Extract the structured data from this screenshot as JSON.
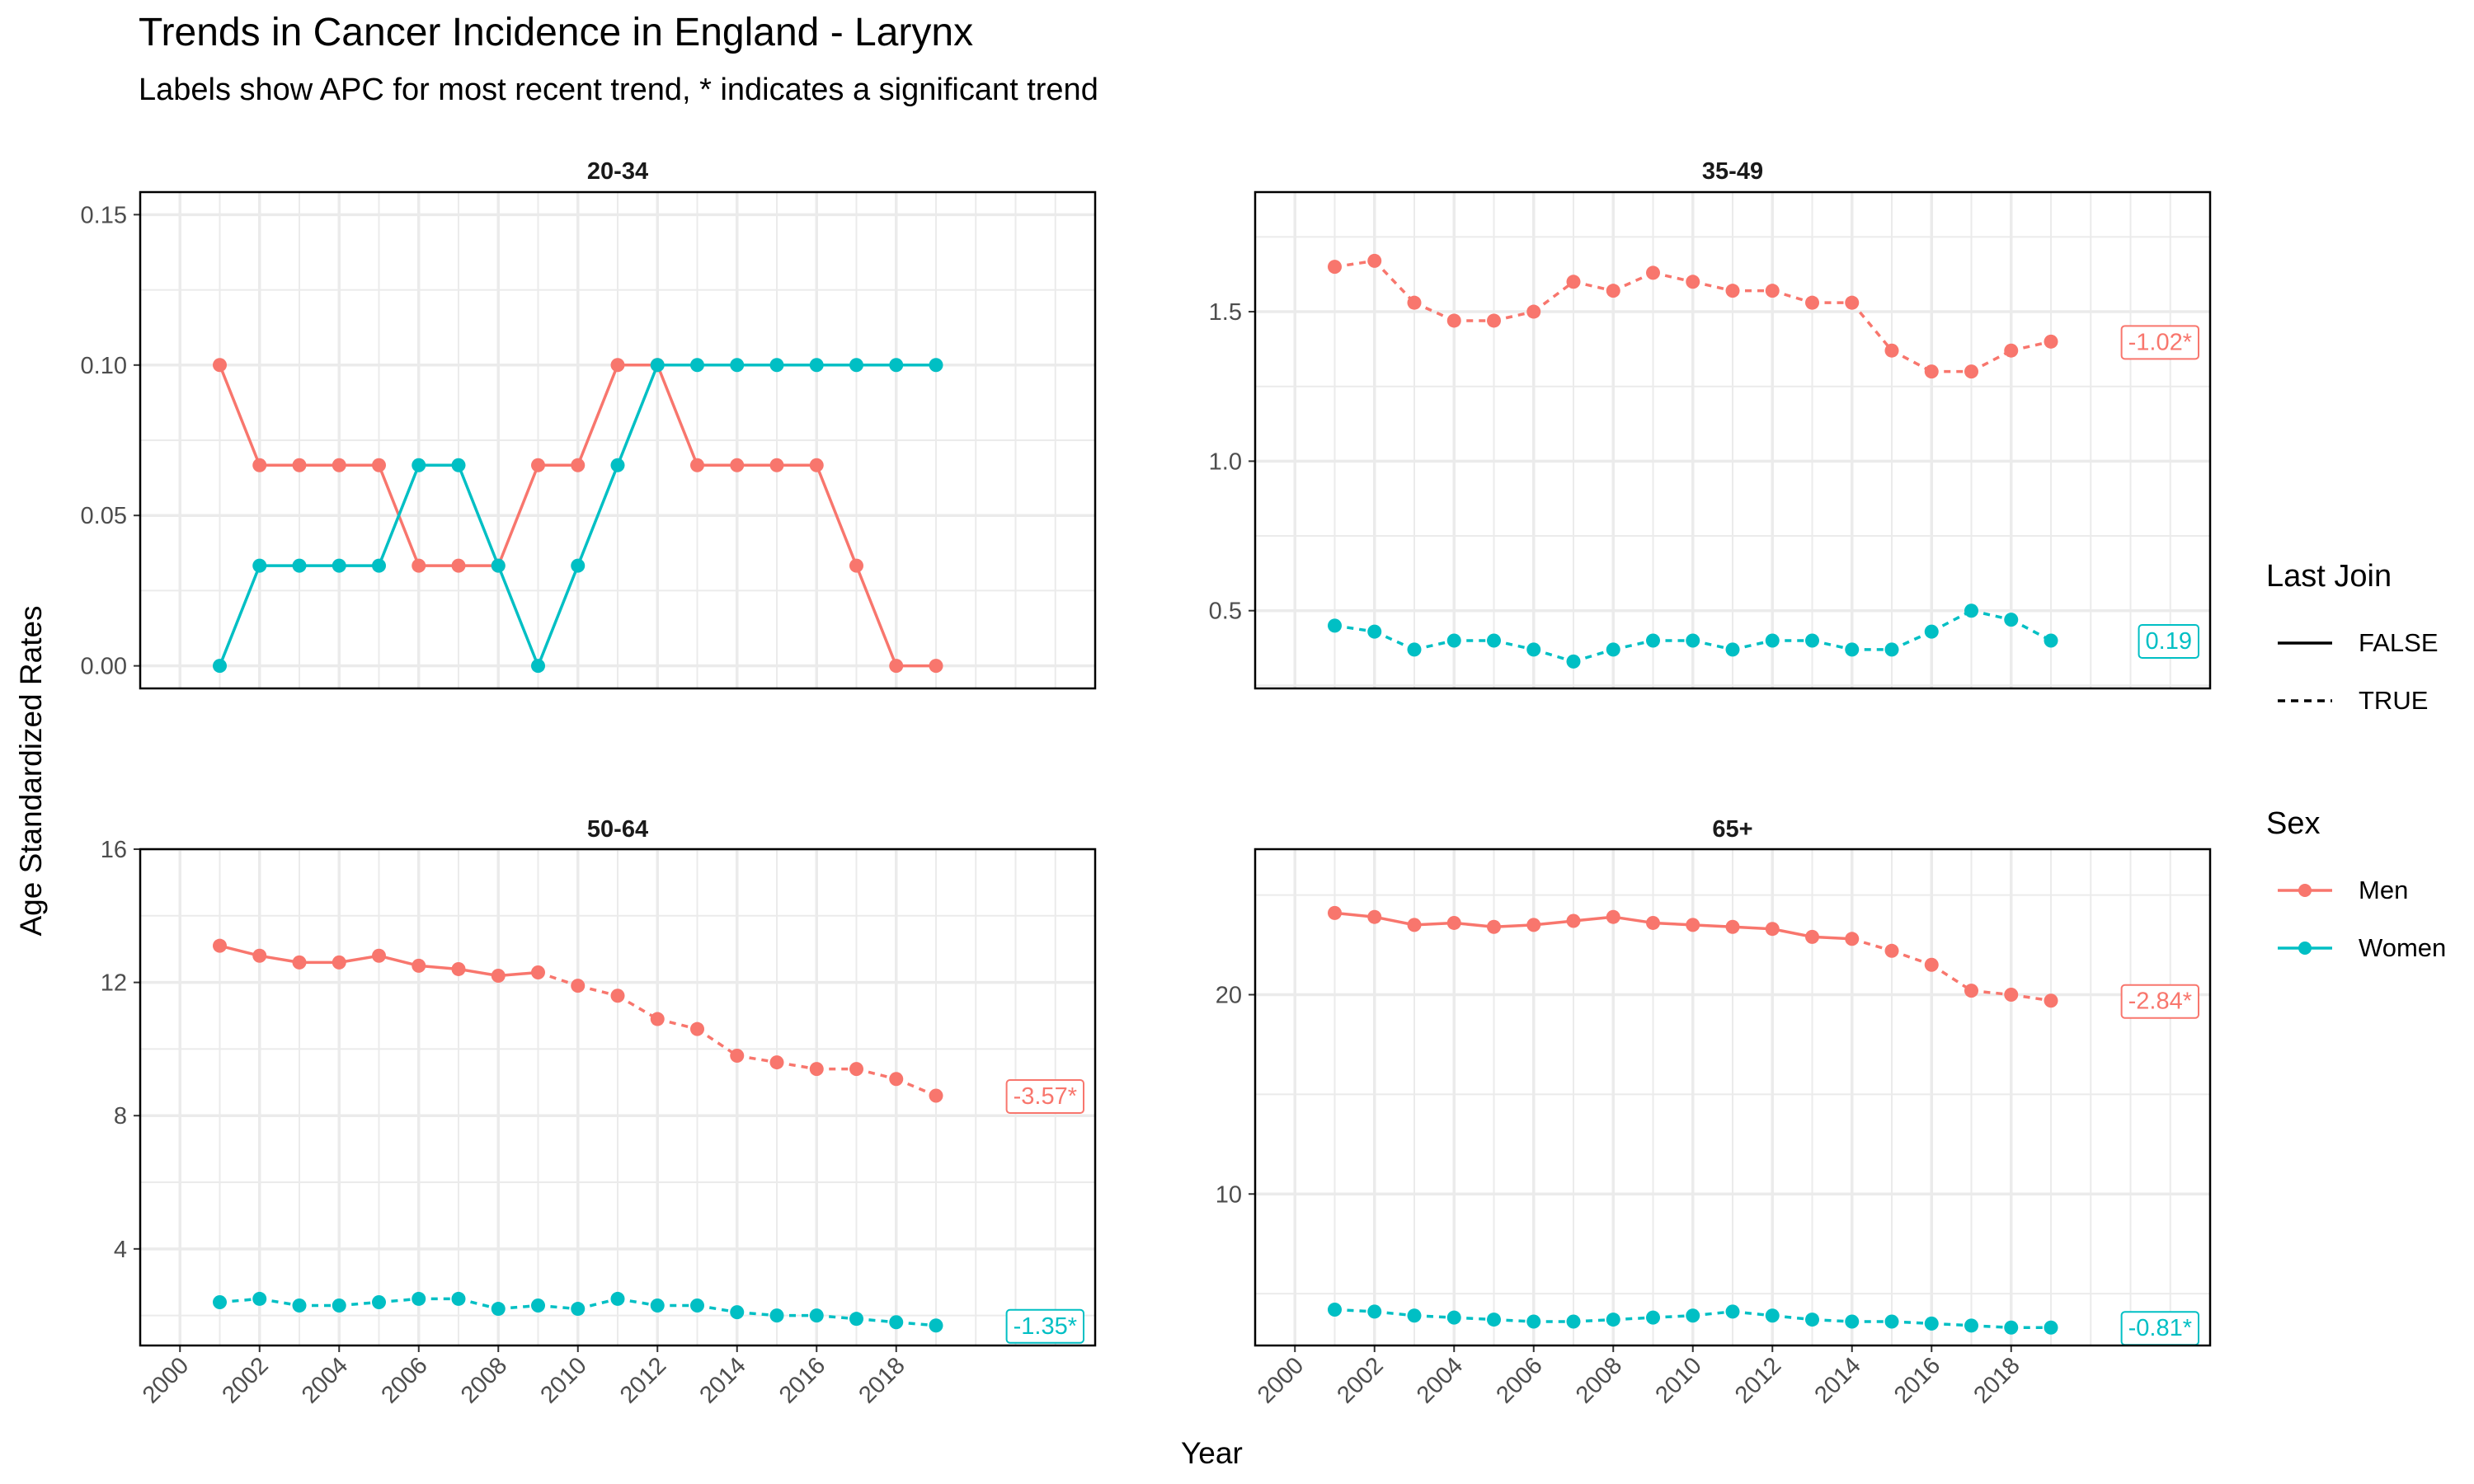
{
  "title": "Trends in Cancer Incidence in England - Larynx",
  "subtitle": "Labels show APC for most recent trend, * indicates a significant trend",
  "colors": {
    "men": "#F8766D",
    "women": "#00BFC4",
    "grid": "#EBEBEB",
    "panel_border": "#000000"
  },
  "legend": {
    "last_join": {
      "title": "Last Join",
      "items": [
        {
          "label": "FALSE",
          "linetype": "solid"
        },
        {
          "label": "TRUE",
          "linetype": "dashed"
        }
      ]
    },
    "sex": {
      "title": "Sex",
      "items": [
        {
          "label": "Men",
          "color": "#F8766D"
        },
        {
          "label": "Women",
          "color": "#00BFC4"
        }
      ]
    }
  },
  "chart_data": {
    "type": "line",
    "title": "Trends in Cancer Incidence in England - Larynx",
    "subtitle": "Labels show APC for most recent trend, * indicates a significant trend",
    "xlabel": "Year",
    "ylabel": "Age Standardized Rates",
    "xlim": [
      1999,
      2023
    ],
    "x_ticks": [
      2000,
      2002,
      2004,
      2006,
      2008,
      2010,
      2012,
      2014,
      2016,
      2018
    ],
    "x": [
      2001,
      2002,
      2003,
      2004,
      2005,
      2006,
      2007,
      2008,
      2009,
      2010,
      2011,
      2012,
      2013,
      2014,
      2015,
      2016,
      2017,
      2018,
      2019
    ],
    "legend_position": "right",
    "grid": true,
    "panels": [
      {
        "label": "20-34",
        "ylim": [
          -0.0075,
          0.1575
        ],
        "y_ticks": [
          0.0,
          0.05,
          0.1,
          0.15
        ],
        "y_tick_labels": [
          "0.00",
          "0.05",
          "0.10",
          "0.15"
        ],
        "series": [
          {
            "name": "Men",
            "values": [
              0.1,
              0.0667,
              0.0667,
              0.0667,
              0.0667,
              0.0333,
              0.0333,
              0.0333,
              0.0667,
              0.0667,
              0.1,
              0.1,
              0.0667,
              0.0667,
              0.0667,
              0.0667,
              0.0333,
              0.0,
              0.0
            ],
            "last_join_start": null,
            "apc_label": null
          },
          {
            "name": "Women",
            "values": [
              0.0,
              0.0333,
              0.0333,
              0.0333,
              0.0333,
              0.0667,
              0.0667,
              0.0333,
              0.0,
              0.0333,
              0.0667,
              0.1,
              0.1,
              0.1,
              0.1,
              0.1,
              0.1,
              0.1,
              0.1
            ],
            "last_join_start": null,
            "apc_label": null
          }
        ]
      },
      {
        "label": "35-49",
        "ylim": [
          0.24,
          1.9
        ],
        "y_ticks": [
          0.5,
          1.0,
          1.5
        ],
        "y_tick_labels": [
          "0.5",
          "1.0",
          "1.5"
        ],
        "series": [
          {
            "name": "Men",
            "values": [
              1.65,
              1.67,
              1.53,
              1.47,
              1.47,
              1.5,
              1.6,
              1.57,
              1.63,
              1.6,
              1.57,
              1.57,
              1.53,
              1.53,
              1.37,
              1.3,
              1.3,
              1.37,
              1.4
            ],
            "last_join_start": 2001,
            "apc_label": "-1.02*"
          },
          {
            "name": "Women",
            "values": [
              0.45,
              0.43,
              0.37,
              0.4,
              0.4,
              0.37,
              0.33,
              0.37,
              0.4,
              0.4,
              0.37,
              0.4,
              0.4,
              0.37,
              0.37,
              0.43,
              0.5,
              0.47,
              0.4
            ],
            "last_join_start": 2001,
            "apc_label": "0.19"
          }
        ]
      },
      {
        "label": "50-64",
        "ylim": [
          1.1,
          16.0
        ],
        "y_ticks": [
          4,
          8,
          12,
          16
        ],
        "y_tick_labels": [
          "4",
          "8",
          "12",
          "16"
        ],
        "series": [
          {
            "name": "Men",
            "values": [
              13.1,
              12.8,
              12.6,
              12.6,
              12.8,
              12.5,
              12.4,
              12.2,
              12.3,
              11.9,
              11.6,
              10.9,
              10.6,
              9.8,
              9.6,
              9.4,
              9.4,
              9.1,
              8.6
            ],
            "last_join_start": 2009,
            "apc_label": "-3.57*"
          },
          {
            "name": "Women",
            "values": [
              2.4,
              2.5,
              2.3,
              2.3,
              2.4,
              2.5,
              2.5,
              2.2,
              2.3,
              2.2,
              2.5,
              2.3,
              2.3,
              2.1,
              2.0,
              2.0,
              1.9,
              1.8,
              1.7
            ],
            "last_join_start": 2001,
            "apc_label": "-1.35*"
          }
        ]
      },
      {
        "label": "65+",
        "ylim": [
          2.4,
          27.3
        ],
        "y_ticks": [
          10,
          20
        ],
        "y_tick_labels": [
          "10",
          "20"
        ],
        "series": [
          {
            "name": "Men",
            "values": [
              24.1,
              23.9,
              23.5,
              23.6,
              23.4,
              23.5,
              23.7,
              23.9,
              23.6,
              23.5,
              23.4,
              23.3,
              22.9,
              22.8,
              22.2,
              21.5,
              20.2,
              20.0,
              19.7
            ],
            "last_join_start": 2014,
            "apc_label": "-2.84*"
          },
          {
            "name": "Women",
            "values": [
              4.2,
              4.1,
              3.9,
              3.8,
              3.7,
              3.6,
              3.6,
              3.7,
              3.8,
              3.9,
              4.1,
              3.9,
              3.7,
              3.6,
              3.6,
              3.5,
              3.4,
              3.3,
              3.3
            ],
            "last_join_start": 2001,
            "apc_label": "-0.81*"
          }
        ]
      }
    ]
  }
}
